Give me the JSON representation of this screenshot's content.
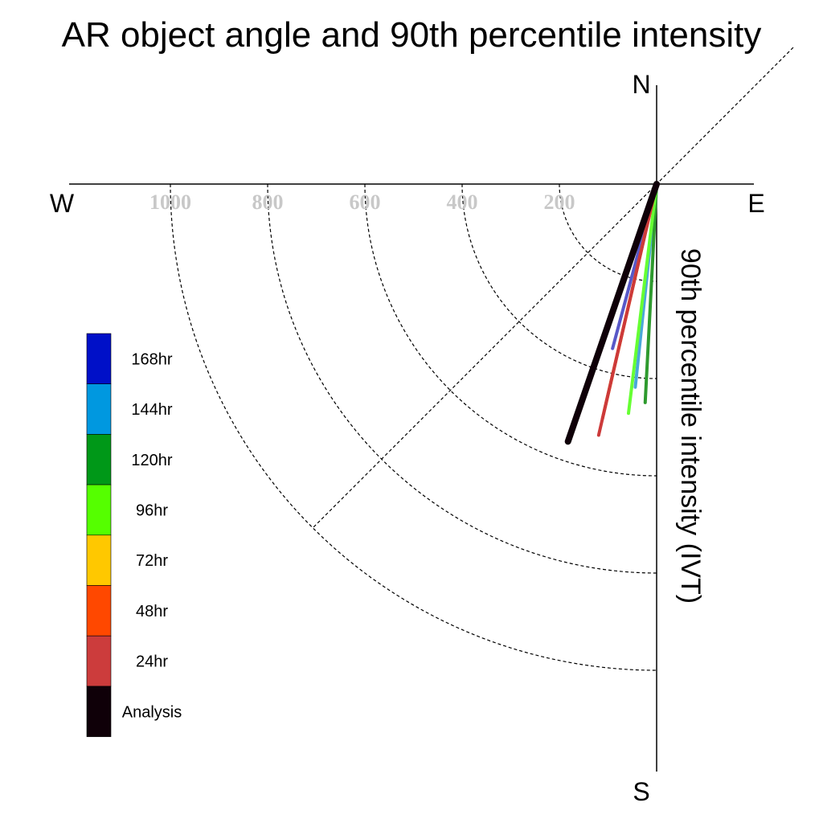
{
  "chart_data": {
    "type": "polar-vector",
    "title": "AR object angle and 90th percentile intensity",
    "ylabel": "90th percentile intensity (IVT)",
    "directions": {
      "north": "N",
      "south": "S",
      "east": "E",
      "west": "W"
    },
    "radial_ticks": [
      200,
      400,
      600,
      800,
      1000
    ],
    "radial_tick_labels": [
      "200",
      "400",
      "600",
      "800",
      "1000"
    ],
    "series": [
      {
        "name": "168hr",
        "color": "#5858c8",
        "angle": 195,
        "intensity": 350
      },
      {
        "name": "144hr",
        "color": "#4aa8d8",
        "angle": 186,
        "intensity": 420
      },
      {
        "name": "120hr",
        "color": "#2e9a2e",
        "angle": 183,
        "intensity": 450
      },
      {
        "name": "96hr",
        "color": "#66ff33",
        "angle": 187,
        "intensity": 475
      },
      {
        "name": "72hr",
        "color": "#ffc300",
        "angle": 193,
        "intensity": 475
      },
      {
        "name": "48hr",
        "color": "#ff4000",
        "angle": 193,
        "intensity": 495
      },
      {
        "name": "24hr",
        "color": "#cc3a3a",
        "angle": 193,
        "intensity": 530
      },
      {
        "name": "Analysis",
        "color": "#0f0008",
        "angle": 199,
        "intensity": 560
      }
    ],
    "legend": [
      {
        "label": "168hr",
        "color": "#0010c8"
      },
      {
        "label": "144hr",
        "color": "#0098e0"
      },
      {
        "label": "120hr",
        "color": "#009818"
      },
      {
        "label": "96hr",
        "color": "#55ff00"
      },
      {
        "label": "72hr",
        "color": "#ffc800"
      },
      {
        "label": "48hr",
        "color": "#ff4800"
      },
      {
        "label": "24hr",
        "color": "#cc3c3c"
      },
      {
        "label": "Analysis",
        "color": "#0f0008"
      }
    ]
  }
}
